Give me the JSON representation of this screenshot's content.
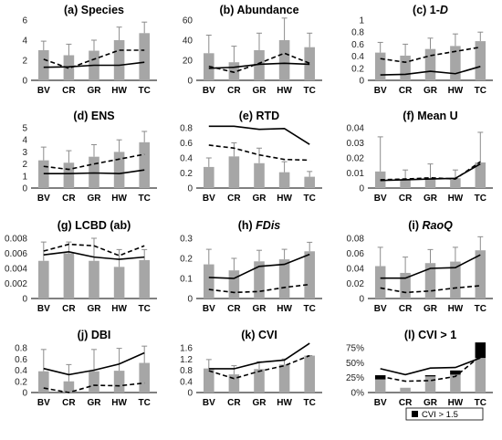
{
  "categories": [
    "BV",
    "CR",
    "GR",
    "HW",
    "TC"
  ],
  "colors": {
    "bar": "#a6a6a6",
    "bar_dark": "#000000",
    "line": "#000000"
  },
  "chart_data": [
    {
      "type": "bar",
      "title_parts": [
        {
          "t": "(a) Species",
          "i": false
        }
      ],
      "categories": [
        "BV",
        "CR",
        "GR",
        "HW",
        "TC"
      ],
      "ylim": [
        0,
        6
      ],
      "yticks": [
        0,
        2,
        4,
        6
      ],
      "tick_labels": [
        "0",
        "2",
        "4",
        "6"
      ],
      "bars": [
        3.0,
        2.5,
        2.95,
        4.0,
        4.7
      ],
      "errors": [
        3.9,
        3.6,
        4.0,
        5.3,
        5.8
      ],
      "solid": [
        1.3,
        1.35,
        1.5,
        1.5,
        1.8
      ],
      "dashed": [
        2.1,
        1.2,
        2.1,
        3.0,
        3.0
      ]
    },
    {
      "type": "bar",
      "title_parts": [
        {
          "t": "(b) Abundance",
          "i": false
        }
      ],
      "categories": [
        "BV",
        "CR",
        "GR",
        "HW",
        "TC"
      ],
      "ylim": [
        0,
        60
      ],
      "yticks": [
        0,
        20,
        40,
        60
      ],
      "tick_labels": [
        "0",
        "20",
        "40",
        "60"
      ],
      "bars": [
        27,
        18,
        30,
        40,
        33
      ],
      "errors": [
        45,
        34,
        47,
        62,
        47
      ],
      "solid": [
        12,
        13,
        16,
        17,
        16
      ],
      "dashed": [
        14,
        8,
        17,
        27,
        17
      ]
    },
    {
      "type": "bar",
      "title_parts": [
        {
          "t": "(c) 1-",
          "i": false
        },
        {
          "t": "D",
          "i": true
        }
      ],
      "categories": [
        "BV",
        "CR",
        "GR",
        "HW",
        "TC"
      ],
      "ylim": [
        0,
        1
      ],
      "yticks": [
        0,
        0.2,
        0.4,
        0.6,
        0.8,
        1
      ],
      "tick_labels": [
        "0",
        "0.2",
        "0.4",
        "0.6",
        "0.8",
        "1"
      ],
      "bars": [
        0.46,
        0.41,
        0.52,
        0.57,
        0.65
      ],
      "errors": [
        0.63,
        0.6,
        0.7,
        0.77,
        0.8
      ],
      "solid": [
        0.09,
        0.1,
        0.15,
        0.11,
        0.23
      ],
      "dashed": [
        0.36,
        0.3,
        0.41,
        0.48,
        0.55
      ]
    },
    {
      "type": "bar",
      "title_parts": [
        {
          "t": "(d) ENS",
          "i": false
        }
      ],
      "categories": [
        "BV",
        "CR",
        "GR",
        "HW",
        "TC"
      ],
      "ylim": [
        0,
        5
      ],
      "yticks": [
        0,
        1,
        2,
        3,
        4,
        5
      ],
      "tick_labels": [
        "0",
        "1",
        "2",
        "3",
        "4",
        "5"
      ],
      "bars": [
        2.3,
        2.1,
        2.6,
        3.0,
        3.8
      ],
      "errors": [
        3.4,
        3.1,
        3.6,
        4.0,
        4.7
      ],
      "solid": [
        1.2,
        1.2,
        1.25,
        1.2,
        1.5
      ],
      "dashed": [
        1.8,
        1.55,
        2.0,
        2.4,
        2.8
      ]
    },
    {
      "type": "bar",
      "title_parts": [
        {
          "t": "(e) RTD",
          "i": false
        }
      ],
      "categories": [
        "BV",
        "CR",
        "GR",
        "HW",
        "TC"
      ],
      "ylim": [
        0,
        0.8
      ],
      "yticks": [
        0,
        0.2,
        0.4,
        0.6,
        0.8
      ],
      "tick_labels": [
        "0",
        "0.2",
        "0.4",
        "0.6",
        "0.8"
      ],
      "bars": [
        0.28,
        0.42,
        0.33,
        0.21,
        0.15
      ],
      "errors": [
        0.4,
        0.6,
        0.53,
        0.35,
        0.22
      ],
      "solid": [
        0.82,
        0.82,
        0.78,
        0.79,
        0.58
      ],
      "dashed": [
        0.57,
        0.53,
        0.44,
        0.38,
        0.37
      ]
    },
    {
      "type": "bar",
      "title_parts": [
        {
          "t": "(f) Mean U",
          "i": false
        }
      ],
      "categories": [
        "BV",
        "CR",
        "GR",
        "HW",
        "TC"
      ],
      "ylim": [
        0,
        0.04
      ],
      "yticks": [
        0,
        0.01,
        0.02,
        0.03,
        0.04
      ],
      "tick_labels": [
        "0",
        "0.01",
        "0.02",
        "0.03",
        "0.04"
      ],
      "bars": [
        0.011,
        0.006,
        0.0065,
        0.0065,
        0.017
      ],
      "errors": [
        0.034,
        0.012,
        0.016,
        0.012,
        0.037
      ],
      "solid": [
        0.005,
        0.0055,
        0.006,
        0.0065,
        0.016
      ],
      "dashed": [
        0.0055,
        0.006,
        0.0068,
        0.006,
        0.0175
      ]
    },
    {
      "type": "bar",
      "title_parts": [
        {
          "t": "(g) LCBD (ab)",
          "i": false
        }
      ],
      "categories": [
        "BV",
        "CR",
        "GR",
        "HW",
        "TC"
      ],
      "ylim": [
        0,
        0.008
      ],
      "yticks": [
        0,
        0.002,
        0.004,
        0.006,
        0.008
      ],
      "tick_labels": [
        "0",
        "0.002",
        "0.004",
        "0.006",
        "0.008"
      ],
      "bars": [
        0.005,
        0.006,
        0.005,
        0.0042,
        0.0051
      ],
      "errors": [
        0.0075,
        0.0075,
        0.008,
        0.0065,
        0.0065
      ],
      "solid": [
        0.0058,
        0.0062,
        0.0055,
        0.0052,
        0.0055
      ],
      "dashed": [
        0.0063,
        0.0072,
        0.007,
        0.0057,
        0.007
      ]
    },
    {
      "type": "bar",
      "title_parts": [
        {
          "t": "(h) ",
          "i": false
        },
        {
          "t": "FDis",
          "i": true
        }
      ],
      "categories": [
        "BV",
        "CR",
        "GR",
        "HW",
        "TC"
      ],
      "ylim": [
        0,
        0.3
      ],
      "yticks": [
        0,
        0.1,
        0.2,
        0.3
      ],
      "tick_labels": [
        "0",
        "0.1",
        "0.2",
        "0.3"
      ],
      "bars": [
        0.17,
        0.14,
        0.185,
        0.195,
        0.235
      ],
      "errors": [
        0.245,
        0.2,
        0.24,
        0.245,
        0.28
      ],
      "solid": [
        0.105,
        0.1,
        0.16,
        0.17,
        0.22
      ],
      "dashed": [
        0.045,
        0.03,
        0.035,
        0.055,
        0.07
      ]
    },
    {
      "type": "bar",
      "title_parts": [
        {
          "t": "(i) ",
          "i": false
        },
        {
          "t": "RaoQ",
          "i": true
        }
      ],
      "categories": [
        "BV",
        "CR",
        "GR",
        "HW",
        "TC"
      ],
      "ylim": [
        0,
        0.08
      ],
      "yticks": [
        0,
        0.02,
        0.04,
        0.06,
        0.08
      ],
      "tick_labels": [
        "0",
        "0.02",
        "0.04",
        "0.06",
        "0.08"
      ],
      "bars": [
        0.043,
        0.034,
        0.047,
        0.049,
        0.064
      ],
      "errors": [
        0.068,
        0.055,
        0.065,
        0.068,
        0.082
      ],
      "solid": [
        0.027,
        0.027,
        0.04,
        0.041,
        0.058
      ],
      "dashed": [
        0.014,
        0.008,
        0.01,
        0.014,
        0.017
      ]
    },
    {
      "type": "bar",
      "title_parts": [
        {
          "t": "(j) DBI",
          "i": false
        }
      ],
      "categories": [
        "BV",
        "CR",
        "GR",
        "HW",
        "TC"
      ],
      "ylim": [
        0,
        0.8
      ],
      "yticks": [
        0,
        0.2,
        0.4,
        0.6,
        0.8
      ],
      "tick_labels": [
        "0",
        "0.2",
        "0.4",
        "0.6",
        "0.8"
      ],
      "bars": [
        0.38,
        0.2,
        0.38,
        0.39,
        0.53
      ],
      "errors": [
        0.77,
        0.5,
        0.77,
        0.79,
        0.83
      ],
      "solid": [
        0.43,
        0.32,
        0.4,
        0.51,
        0.71
      ],
      "dashed": [
        0.08,
        0.0,
        0.13,
        0.12,
        0.17
      ]
    },
    {
      "type": "bar",
      "title_parts": [
        {
          "t": "(k) CVI",
          "i": false
        }
      ],
      "categories": [
        "BV",
        "CR",
        "GR",
        "HW",
        "TC"
      ],
      "ylim": [
        0,
        1.6
      ],
      "yticks": [
        0,
        0.4,
        0.8,
        1.2,
        1.6
      ],
      "tick_labels": [
        "0",
        "0.4",
        "0.8",
        "1.2",
        "1.6"
      ],
      "bars": [
        0.86,
        0.65,
        0.84,
        1.0,
        1.32
      ],
      "errors": [
        1.18,
        0.96,
        1.1,
        1.2,
        1.32
      ],
      "solid": [
        0.85,
        0.85,
        1.08,
        1.16,
        1.76
      ],
      "dashed": [
        0.78,
        0.5,
        0.76,
        0.96,
        1.32
      ]
    },
    {
      "type": "bar",
      "title_parts": [
        {
          "t": "(l) CVI > 1",
          "i": false
        }
      ],
      "categories": [
        "BV",
        "CR",
        "GR",
        "HW",
        "TC"
      ],
      "ylim": [
        0,
        0.75
      ],
      "yticks": [
        0,
        0.25,
        0.5,
        0.75
      ],
      "tick_labels": [
        "0%",
        "25%",
        "50%",
        "75%"
      ],
      "bars": [
        0.22,
        0.08,
        0.27,
        0.3,
        0.58
      ],
      "bars_dark": [
        0.07,
        0,
        0.02,
        0.07,
        0.26
      ],
      "solid": [
        0.4,
        0.3,
        0.41,
        0.42,
        0.58
      ],
      "dashed": [
        0.27,
        0.19,
        0.2,
        0.27,
        0.61
      ],
      "legend": "CVI > 1.5"
    }
  ]
}
